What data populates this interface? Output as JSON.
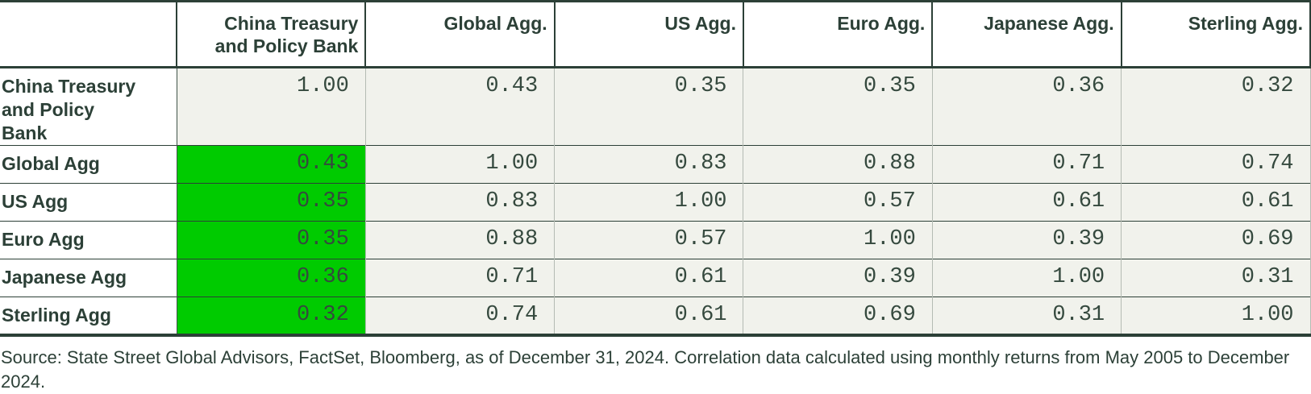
{
  "colors": {
    "dark_green_text": "#2c4037",
    "cell_background": "#f1f2ec",
    "highlight_green": "#00cb00",
    "light_gridline": "#b4bbb3"
  },
  "table": {
    "columns": [
      "",
      "China Treasury and Policy Bank",
      "Global Agg.",
      "US Agg.",
      "Euro Agg.",
      "Japanese Agg.",
      "Sterling Agg."
    ],
    "rows": [
      {
        "label": "China Treasury and Policy Bank",
        "values": [
          "1.00",
          "0.43",
          "0.35",
          "0.35",
          "0.36",
          "0.32"
        ]
      },
      {
        "label": "Global Agg",
        "values": [
          "0.43",
          "1.00",
          "0.83",
          "0.88",
          "0.71",
          "0.74"
        ]
      },
      {
        "label": "US Agg",
        "values": [
          "0.35",
          "0.83",
          "1.00",
          "0.57",
          "0.61",
          "0.61"
        ]
      },
      {
        "label": "Euro Agg",
        "values": [
          "0.35",
          "0.88",
          "0.57",
          "1.00",
          "0.39",
          "0.69"
        ]
      },
      {
        "label": "Japanese Agg",
        "values": [
          "0.36",
          "0.71",
          "0.61",
          "0.39",
          "1.00",
          "0.31"
        ]
      },
      {
        "label": "Sterling Agg",
        "values": [
          "0.32",
          "0.74",
          "0.61",
          "0.69",
          "0.31",
          "1.00"
        ]
      }
    ]
  },
  "chart_data": {
    "type": "table",
    "title": "",
    "columns": [
      "China Treasury and Policy Bank",
      "Global Agg.",
      "US Agg.",
      "Euro Agg.",
      "Japanese Agg.",
      "Sterling Agg."
    ],
    "row_labels": [
      "China Treasury and Policy Bank",
      "Global Agg",
      "US Agg",
      "Euro Agg",
      "Japanese Agg",
      "Sterling Agg"
    ],
    "matrix": [
      [
        1.0,
        0.43,
        0.35,
        0.35,
        0.36,
        0.32
      ],
      [
        0.43,
        1.0,
        0.83,
        0.88,
        0.71,
        0.74
      ],
      [
        0.35,
        0.83,
        1.0,
        0.57,
        0.61,
        0.61
      ],
      [
        0.35,
        0.88,
        0.57,
        1.0,
        0.39,
        0.69
      ],
      [
        0.36,
        0.71,
        0.61,
        0.39,
        1.0,
        0.31
      ],
      [
        0.32,
        0.74,
        0.61,
        0.69,
        0.31,
        1.0
      ]
    ],
    "highlight": {
      "description": "First data column highlighted green for rows Global Agg through Sterling Agg",
      "color": "#00cb00",
      "rows": [
        "Global Agg",
        "US Agg",
        "Euro Agg",
        "Japanese Agg",
        "Sterling Agg"
      ]
    }
  },
  "source_note": "Source: State Street Global Advisors, FactSet, Bloomberg, as of December 31, 2024. Correlation data calculated using monthly returns from May 2005 to December 2024."
}
